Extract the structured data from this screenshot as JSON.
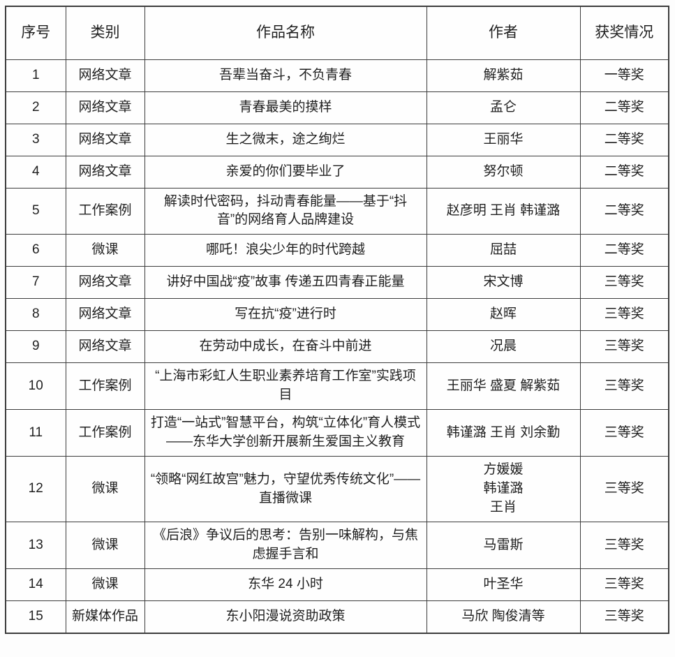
{
  "table": {
    "headers": [
      "序号",
      "类别",
      "作品名称",
      "作者",
      "获奖情况"
    ],
    "rows": [
      {
        "no": "1",
        "category": "网络文章",
        "title": "吾辈当奋斗，不负青春",
        "author": "解紫茹",
        "award": "一等奖"
      },
      {
        "no": "2",
        "category": "网络文章",
        "title": "青春最美的摸样",
        "author": "孟仑",
        "award": "二等奖"
      },
      {
        "no": "3",
        "category": "网络文章",
        "title": "生之微末，途之绚烂",
        "author": "王丽华",
        "award": "二等奖"
      },
      {
        "no": "4",
        "category": "网络文章",
        "title": "亲爱的你们要毕业了",
        "author": "努尔顿",
        "award": "二等奖"
      },
      {
        "no": "5",
        "category": "工作案例",
        "title": "解读时代密码，抖动青春能量——基于“抖音”的网络育人品牌建设",
        "author": "赵彦明 王肖 韩谨潞",
        "award": "二等奖"
      },
      {
        "no": "6",
        "category": "微课",
        "title": "哪吒！浪尖少年的时代跨越",
        "author": "屈喆",
        "award": "二等奖"
      },
      {
        "no": "7",
        "category": "网络文章",
        "title": "讲好中国战“疫”故事 传递五四青春正能量",
        "author": "宋文博",
        "award": "三等奖"
      },
      {
        "no": "8",
        "category": "网络文章",
        "title": "写在抗“疫”进行时",
        "author": "赵晖",
        "award": "三等奖"
      },
      {
        "no": "9",
        "category": "网络文章",
        "title": "在劳动中成长，在奋斗中前进",
        "author": "况晨",
        "award": "三等奖"
      },
      {
        "no": "10",
        "category": "工作案例",
        "title": "“上海市彩虹人生职业素养培育工作室”实践项目",
        "author": "王丽华 盛夏 解紫茹",
        "award": "三等奖"
      },
      {
        "no": "11",
        "category": "工作案例",
        "title": "打造“一站式”智慧平台，构筑“立体化”育人模式——东华大学创新开展新生爱国主义教育",
        "author": "韩谨潞 王肖 刘余勤",
        "award": "三等奖"
      },
      {
        "no": "12",
        "category": "微课",
        "title": "“领略“网红故宫”魅力，守望优秀传统文化”——直播微课",
        "author": "方媛媛\n韩谨潞\n王肖",
        "award": "三等奖"
      },
      {
        "no": "13",
        "category": "微课",
        "title": "《后浪》争议后的思考：告别一味解构，与焦虑握手言和",
        "author": "马雷斯",
        "award": "三等奖"
      },
      {
        "no": "14",
        "category": "微课",
        "title": "东华 24 小时",
        "author": "叶圣华",
        "award": "三等奖"
      },
      {
        "no": "15",
        "category": "新媒体作品",
        "title": "东小阳漫说资助政策",
        "author": "马欣 陶俊清等",
        "award": "三等奖"
      }
    ]
  }
}
